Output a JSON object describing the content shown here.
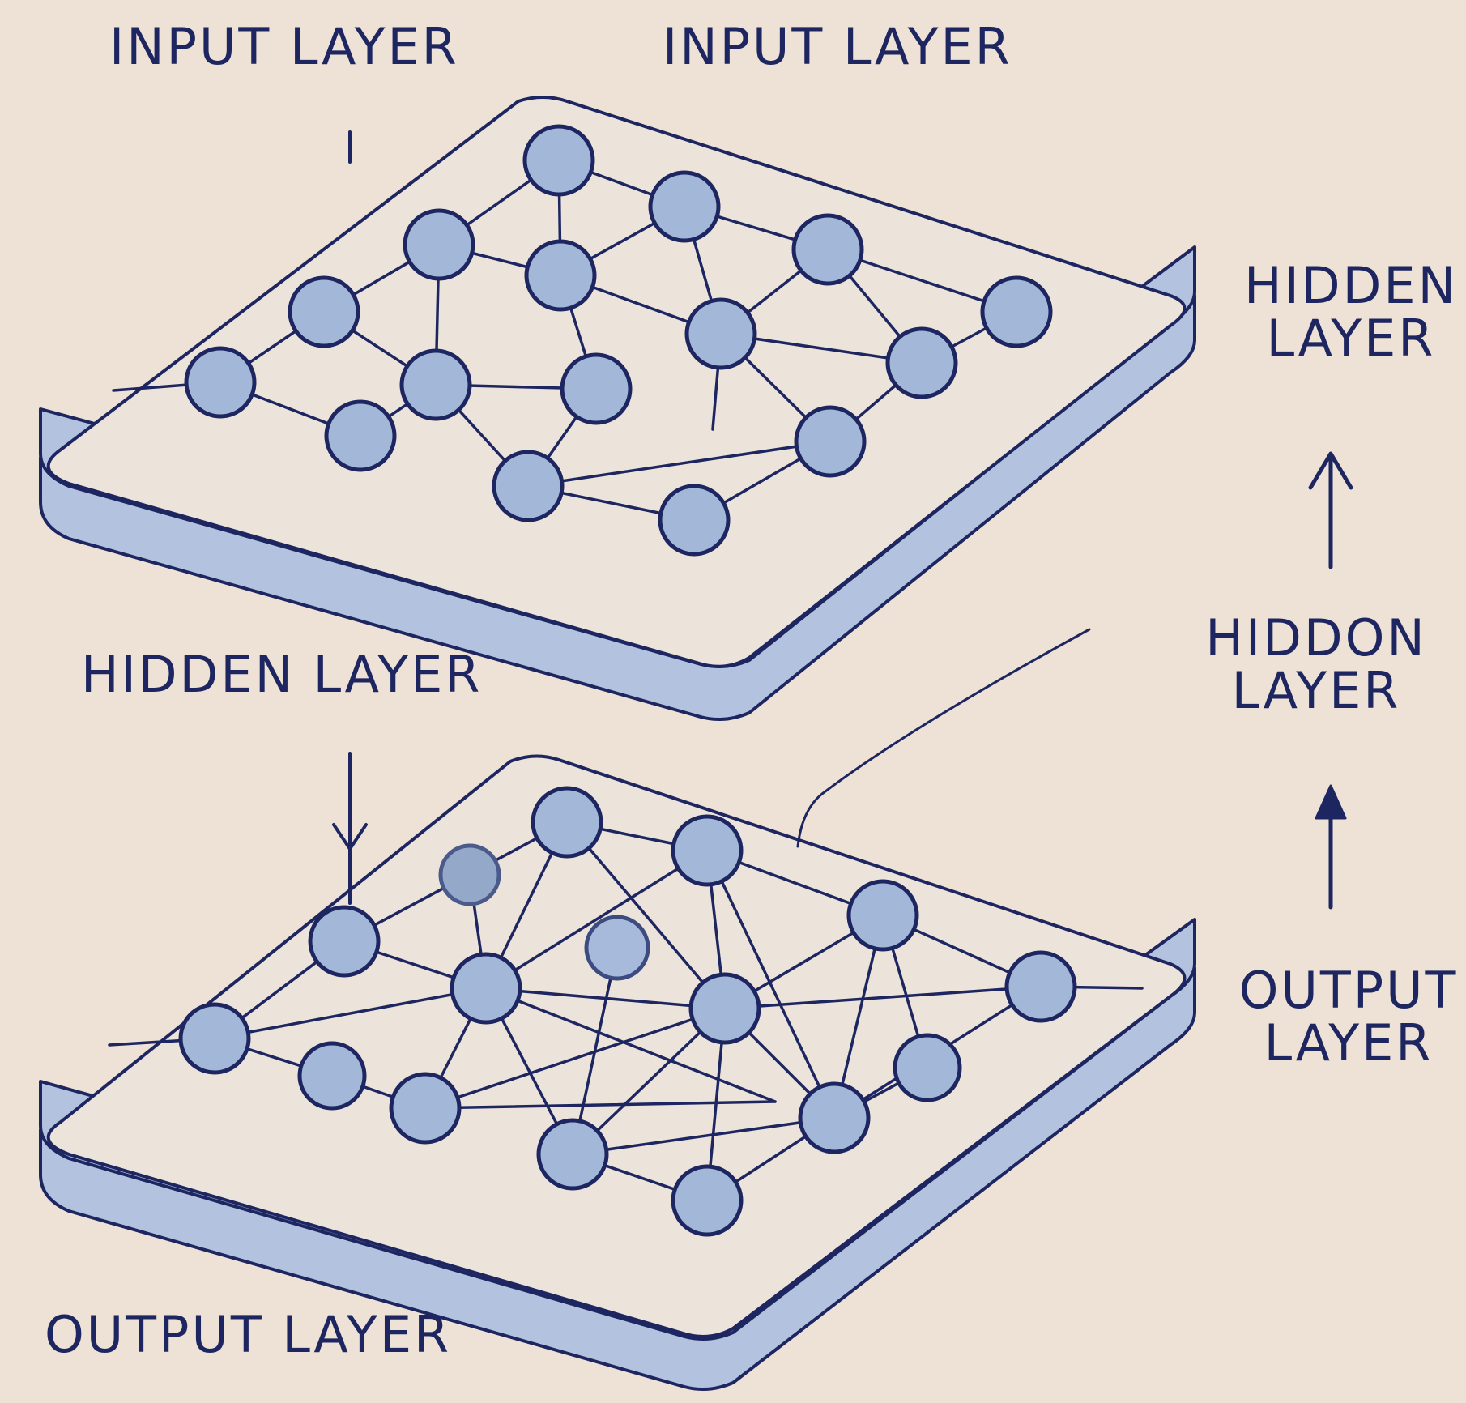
{
  "labels": {
    "top_left": "INPUT LAYER",
    "top_center": "INPUT LAYER",
    "middle_left": "HIDDEN LAYER",
    "bottom_left": "OUTPUT LAYER",
    "right_top_line1": "HIDDEN",
    "right_top_line2": "LAYER",
    "right_mid_line1": "HIDDON",
    "right_mid_line2": "LAYER",
    "right_bottom_line1": "OUTPUT",
    "right_bottom_line2": "LAYER"
  },
  "colors": {
    "background": "#eee1d5",
    "ink": "#1d2660",
    "slab": "#b3c3df",
    "slab_top": "#ece3da",
    "node": "#a3b7d8"
  }
}
